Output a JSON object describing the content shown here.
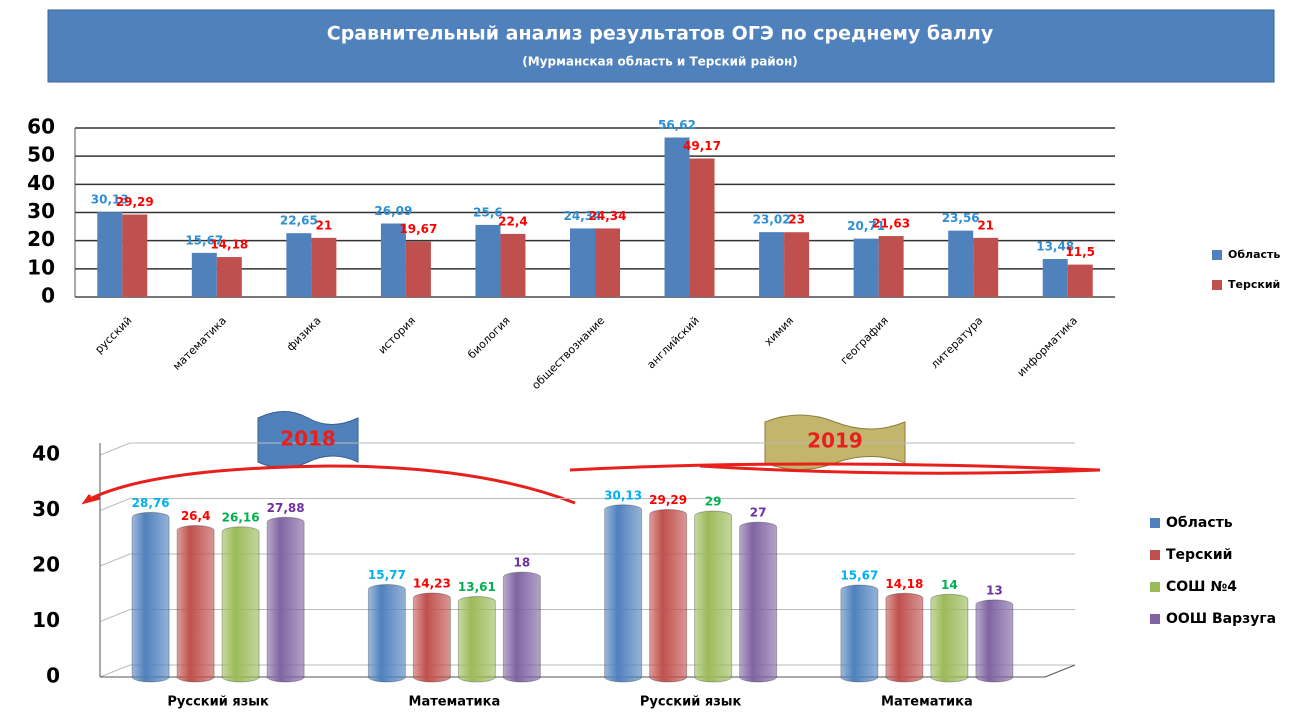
{
  "header": {
    "title": "Сравнительный анализ результатов ОГЭ  по среднему баллу",
    "subtitle": "(Мурманская  область и Терский  район)"
  },
  "chart_data": [
    {
      "type": "bar",
      "style": "flat",
      "categories": [
        "русский",
        "математика",
        "физика",
        "история",
        "биология",
        "обществознание",
        "английский",
        "химия",
        "география",
        "литература",
        "информатика"
      ],
      "series": [
        {
          "name": "Область",
          "color": "#4f81bd",
          "label_color": "#2e8fd6",
          "values": [
            30.13,
            15.67,
            22.65,
            26.09,
            25.6,
            24.34,
            56.62,
            23.02,
            20.71,
            23.56,
            13.48
          ],
          "value_labels": [
            "30,13",
            "15,67",
            "22,65",
            "26,09",
            "25,6",
            "24,34",
            "56,62",
            "23,02",
            "20,71",
            "23,56",
            "13,48"
          ]
        },
        {
          "name": "Терский",
          "color": "#c0504d",
          "label_color": "#ff0000",
          "values": [
            29.29,
            14.18,
            21,
            19.67,
            22.4,
            24.34,
            49.17,
            23,
            21.63,
            21,
            11.5
          ],
          "value_labels": [
            "29,29",
            "14,18",
            "21",
            "19,67",
            "22,4",
            "24,34",
            "49,17",
            "23",
            "21,63",
            "21",
            "11,5"
          ]
        }
      ],
      "ylim": [
        0,
        60
      ],
      "yticks": [
        0,
        10,
        20,
        30,
        40,
        50,
        60
      ],
      "grid": true,
      "legend": "right"
    },
    {
      "type": "bar",
      "style": "cylinder",
      "categories": [
        "Русский язык",
        "Математика",
        "Русский язык",
        "Математика"
      ],
      "annotations": [
        "2018",
        "2019"
      ],
      "series": [
        {
          "name": "Область",
          "color": "#4f81bd",
          "label_color": "#00b0f0",
          "values": [
            28.76,
            15.77,
            30.13,
            15.67
          ],
          "value_labels": [
            "28,76",
            "15,77",
            "30,13",
            "15,67"
          ]
        },
        {
          "name": "Терский",
          "color": "#c0504d",
          "label_color": "#ff0000",
          "values": [
            26.4,
            14.23,
            29.29,
            14.18
          ],
          "value_labels": [
            "26,4",
            "14,23",
            "29,29",
            "14,18"
          ]
        },
        {
          "name": "СОШ №4",
          "color": "#9bbb59",
          "label_color": "#00b050",
          "values": [
            26.16,
            13.61,
            29,
            14
          ],
          "value_labels": [
            "26,16",
            "13,61",
            "29",
            "14"
          ]
        },
        {
          "name": "ООШ Варзуга",
          "color": "#8064a2",
          "label_color": "#7030a0",
          "values": [
            27.88,
            18,
            27,
            13
          ],
          "value_labels": [
            "27,88",
            "18",
            "27",
            "13"
          ]
        }
      ],
      "ylim": [
        0,
        40
      ],
      "yticks": [
        0,
        10,
        20,
        30,
        40
      ],
      "grid": true,
      "legend": "right"
    }
  ]
}
